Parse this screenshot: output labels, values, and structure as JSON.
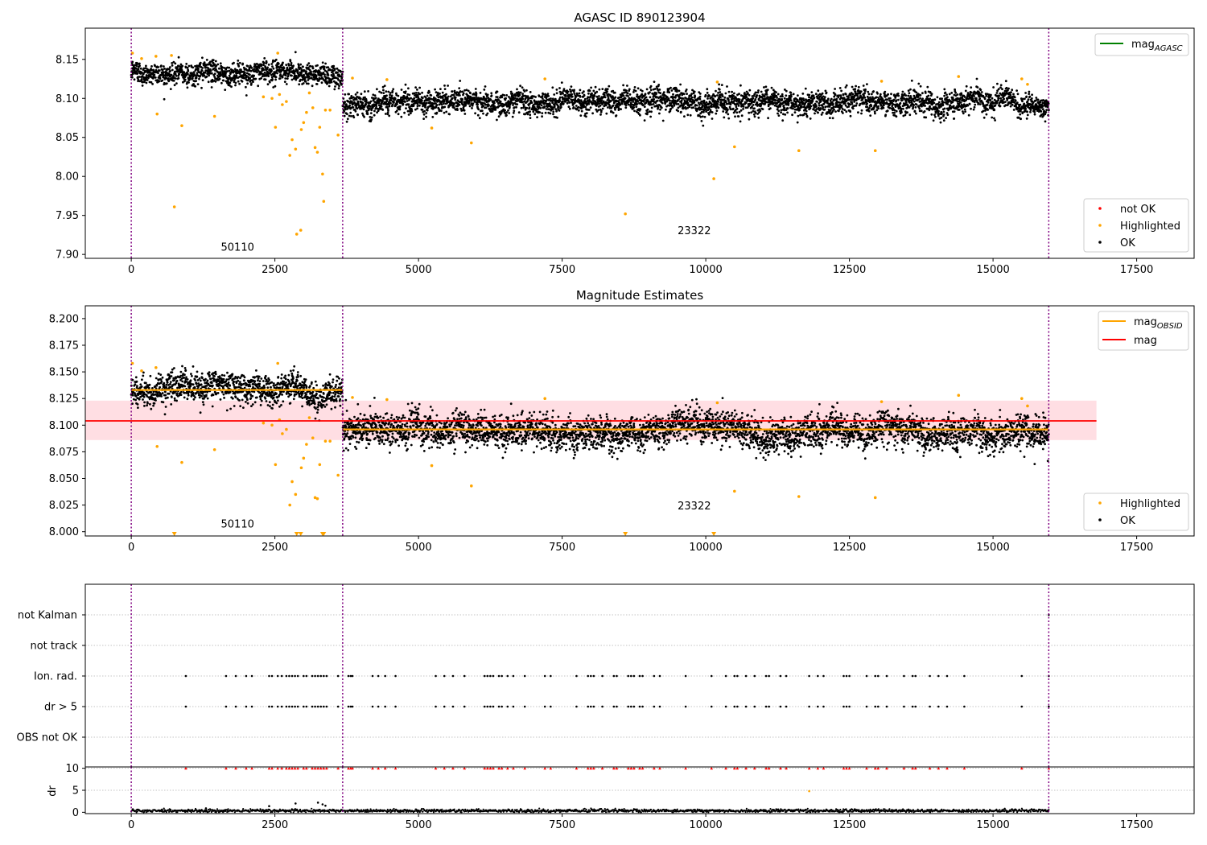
{
  "colors": {
    "ok": "#000000",
    "highlighted": "#ffa500",
    "not_ok": "#ff0000",
    "mag_agasc": "#008000",
    "mag_obsid": "#ffa500",
    "mag": "#ff0000",
    "obsid_sep": "#800080",
    "band": "#ffb6c1",
    "grid": "#b0b0b0"
  },
  "chart_data": [
    {
      "type": "scatter",
      "title": "AGASC ID 890123904",
      "xlim": [
        -800,
        18500
      ],
      "ylim": [
        7.895,
        8.19
      ],
      "x_ticks": [
        0,
        2500,
        5000,
        7500,
        10000,
        12500,
        15000,
        17500
      ],
      "x_tick_labels": [
        "0",
        "2500",
        "5000",
        "7500",
        "10000",
        "12500",
        "15000",
        "17500"
      ],
      "y_ticks": [
        7.9,
        7.95,
        8.0,
        8.05,
        8.1,
        8.15
      ],
      "y_tick_labels": [
        "7.90",
        "7.95",
        "8.00",
        "8.05",
        "8.10",
        "8.15"
      ],
      "legend_top": {
        "placement": "top-right",
        "entries": [
          {
            "label": "mag",
            "sub": "AGASC",
            "color": "#008000"
          }
        ]
      },
      "legend_bottom": {
        "placement": "lower-right",
        "entries": [
          {
            "label": "not OK",
            "color": "#ff0000"
          },
          {
            "label": "Highlighted",
            "color": "#ffa500"
          },
          {
            "label": "OK",
            "color": "#000000"
          }
        ]
      },
      "obsid_labels": [
        {
          "text": "50110",
          "x": 1850,
          "y": 7.905
        },
        {
          "text": "23322",
          "x": 9800,
          "y": 7.926
        }
      ],
      "obsid_boundaries": [
        0,
        3680,
        15970
      ],
      "segments": [
        {
          "x_start": 0,
          "x_end": 3680,
          "mean": 8.133,
          "spread": 0.007
        },
        {
          "x_start": 3680,
          "x_end": 15970,
          "mean": 8.096,
          "spread": 0.0075
        }
      ],
      "highlighted_points": [
        [
          20,
          8.158
        ],
        [
          180,
          8.151
        ],
        [
          430,
          8.154
        ],
        [
          450,
          8.08
        ],
        [
          700,
          8.155
        ],
        [
          750,
          7.961
        ],
        [
          880,
          8.065
        ],
        [
          1450,
          8.077
        ],
        [
          2300,
          8.102
        ],
        [
          2450,
          8.1
        ],
        [
          2510,
          8.063
        ],
        [
          2550,
          8.158
        ],
        [
          2580,
          8.105
        ],
        [
          2630,
          8.092
        ],
        [
          2700,
          8.096
        ],
        [
          2760,
          8.027
        ],
        [
          2800,
          8.047
        ],
        [
          2860,
          8.035
        ],
        [
          2880,
          7.926
        ],
        [
          2950,
          7.931
        ],
        [
          2960,
          8.06
        ],
        [
          3000,
          8.069
        ],
        [
          3050,
          8.082
        ],
        [
          3100,
          8.107
        ],
        [
          3160,
          8.088
        ],
        [
          3200,
          8.037
        ],
        [
          3240,
          8.031
        ],
        [
          3280,
          8.063
        ],
        [
          3330,
          8.003
        ],
        [
          3350,
          7.968
        ],
        [
          3380,
          8.085
        ],
        [
          3460,
          8.085
        ],
        [
          3600,
          8.053
        ],
        [
          3850,
          8.126
        ],
        [
          4450,
          8.124
        ],
        [
          5230,
          8.062
        ],
        [
          5920,
          8.043
        ],
        [
          7200,
          8.125
        ],
        [
          8600,
          7.952
        ],
        [
          10140,
          7.997
        ],
        [
          10200,
          8.121
        ],
        [
          10500,
          8.038
        ],
        [
          11620,
          8.033
        ],
        [
          12950,
          8.033
        ],
        [
          13060,
          8.122
        ],
        [
          14400,
          8.128
        ],
        [
          15500,
          8.125
        ],
        [
          15600,
          8.118
        ]
      ]
    },
    {
      "type": "scatter",
      "title": "Magnitude Estimates",
      "xlim": [
        -800,
        18500
      ],
      "ylim": [
        7.996,
        8.212
      ],
      "x_ticks": [
        0,
        2500,
        5000,
        7500,
        10000,
        12500,
        15000,
        17500
      ],
      "x_tick_labels": [
        "0",
        "2500",
        "5000",
        "7500",
        "10000",
        "12500",
        "15000",
        "17500"
      ],
      "y_ticks": [
        8.0,
        8.025,
        8.05,
        8.075,
        8.1,
        8.125,
        8.15,
        8.175,
        8.2
      ],
      "y_tick_labels": [
        "8.000",
        "8.025",
        "8.050",
        "8.075",
        "8.100",
        "8.125",
        "8.150",
        "8.175",
        "8.200"
      ],
      "legend_top": {
        "placement": "top-right",
        "entries": [
          {
            "label": "mag",
            "sub": "OBSID",
            "color": "#ffa500"
          },
          {
            "label": "mag",
            "color": "#ff0000"
          }
        ]
      },
      "legend_bottom": {
        "placement": "lower-right",
        "entries": [
          {
            "label": "Highlighted",
            "color": "#ffa500"
          },
          {
            "label": "OK",
            "color": "#000000"
          }
        ]
      },
      "obsid_labels": [
        {
          "text": "50110",
          "x": 1850,
          "y": 8.004
        },
        {
          "text": "23322",
          "x": 9800,
          "y": 8.021
        }
      ],
      "obsid_boundaries": [
        0,
        3680,
        15970
      ],
      "mag_line": {
        "value": 8.104,
        "x_start": -800,
        "x_end": 16800,
        "band": [
          8.086,
          8.123
        ]
      },
      "mag_obsid": [
        {
          "x_start": 0,
          "x_end": 3680,
          "value": 8.133
        },
        {
          "x_start": 3680,
          "x_end": 15970,
          "value": 8.096
        }
      ],
      "segments": [
        {
          "x_start": 0,
          "x_end": 3680,
          "mean": 8.133,
          "spread": 0.007
        },
        {
          "x_start": 3680,
          "x_end": 15970,
          "mean": 8.096,
          "spread": 0.0075
        }
      ],
      "highlighted_points": [
        [
          20,
          8.158
        ],
        [
          180,
          8.151
        ],
        [
          430,
          8.154
        ],
        [
          450,
          8.08
        ],
        [
          880,
          8.065
        ],
        [
          1450,
          8.077
        ],
        [
          2300,
          8.102
        ],
        [
          2450,
          8.1
        ],
        [
          2510,
          8.063
        ],
        [
          2550,
          8.158
        ],
        [
          2580,
          8.105
        ],
        [
          2630,
          8.092
        ],
        [
          2700,
          8.096
        ],
        [
          2760,
          8.025
        ],
        [
          2800,
          8.047
        ],
        [
          2860,
          8.035
        ],
        [
          2960,
          8.06
        ],
        [
          3000,
          8.069
        ],
        [
          3050,
          8.082
        ],
        [
          3100,
          8.107
        ],
        [
          3160,
          8.088
        ],
        [
          3200,
          8.032
        ],
        [
          3240,
          8.031
        ],
        [
          3280,
          8.063
        ],
        [
          3380,
          8.085
        ],
        [
          3460,
          8.085
        ],
        [
          3600,
          8.053
        ],
        [
          3850,
          8.126
        ],
        [
          4450,
          8.124
        ],
        [
          5230,
          8.062
        ],
        [
          5920,
          8.043
        ],
        [
          7200,
          8.125
        ],
        [
          10200,
          8.121
        ],
        [
          10500,
          8.038
        ],
        [
          11620,
          8.033
        ],
        [
          12950,
          8.032
        ],
        [
          13060,
          8.122
        ],
        [
          14400,
          8.128
        ],
        [
          15500,
          8.125
        ],
        [
          15600,
          8.118
        ]
      ],
      "clipped_low_points": [
        750,
        2880,
        2950,
        3330,
        3350,
        8600,
        10140
      ]
    },
    {
      "type": "scatter",
      "title": "",
      "xlim": [
        -800,
        18500
      ],
      "categories": [
        "not Kalman",
        "not track",
        "Ion. rad.",
        "dr > 5",
        "OBS not OK"
      ],
      "flag_times": [
        950,
        1650,
        1820,
        2000,
        2100,
        2400,
        2450,
        2550,
        2620,
        2700,
        2750,
        2800,
        2850,
        2900,
        3000,
        3050,
        3150,
        3200,
        3250,
        3300,
        3350,
        3400,
        3600,
        3780,
        3820,
        3850,
        4200,
        4300,
        4420,
        4600,
        5300,
        5450,
        5600,
        5800,
        6150,
        6200,
        6250,
        6300,
        6400,
        6450,
        6550,
        6650,
        6850,
        7200,
        7300,
        7750,
        7950,
        8000,
        8050,
        8200,
        8400,
        8450,
        8650,
        8700,
        8750,
        8850,
        8900,
        9100,
        9200,
        9650,
        10100,
        10350,
        10500,
        10550,
        10700,
        10850,
        11050,
        11100,
        11300,
        11400,
        11800,
        11950,
        12050,
        12400,
        12450,
        12500,
        12800,
        12950,
        13000,
        13150,
        13450,
        13600,
        13650,
        13900,
        14050,
        14200,
        14500,
        15500,
        15970
      ],
      "not_kalman_times": [
        15970
      ],
      "obsid_boundaries": [
        0,
        3680,
        15970
      ]
    },
    {
      "type": "scatter",
      "title": "",
      "ylabel": "dr",
      "xlim": [
        -800,
        18500
      ],
      "ylim": [
        -0.3,
        10.3
      ],
      "x_ticks": [
        0,
        2500,
        5000,
        7500,
        10000,
        12500,
        15000,
        17500
      ],
      "x_tick_labels": [
        "0",
        "2500",
        "5000",
        "7500",
        "10000",
        "12500",
        "15000",
        "17500"
      ],
      "y_ticks": [
        0,
        5,
        10
      ],
      "y_tick_labels": [
        "0",
        "5",
        "10"
      ],
      "dr_clip": 10,
      "dr_typical": 0.35,
      "dr_extra": [
        [
          11800,
          4.8
        ],
        [
          2400,
          1.4
        ],
        [
          2860,
          2.0
        ],
        [
          3250,
          2.2
        ],
        [
          3330,
          1.8
        ],
        [
          3380,
          1.5
        ],
        [
          1300,
          0.9
        ]
      ],
      "obsid_boundaries": [
        0,
        3680,
        15970
      ]
    }
  ]
}
